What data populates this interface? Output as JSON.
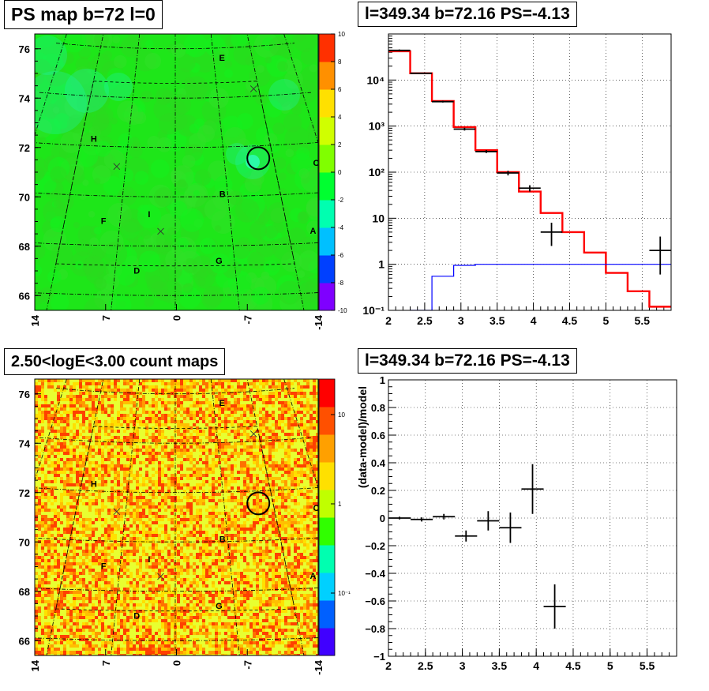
{
  "chart_data": [
    {
      "type": "heatmap",
      "title": "PS map b=72 l=0",
      "ytick_labels": [
        "76",
        "74",
        "72",
        "70",
        "68",
        "66"
      ],
      "y_ticks": [
        76,
        74,
        72,
        70,
        68,
        66
      ],
      "ylim": [
        65.4,
        76.6
      ],
      "xtick_labels": [
        "14",
        "7",
        "0",
        "-7",
        "-14"
      ],
      "xlim": [
        14,
        -14
      ],
      "colorbar": {
        "scale": "linear",
        "range": [
          -10,
          10
        ],
        "tick_labels": [
          "10",
          "8",
          "6",
          "4",
          "2",
          "0",
          "-2",
          "-4",
          "-6",
          "-8",
          "-10"
        ],
        "ticks": [
          10,
          8,
          6,
          4,
          2,
          0,
          -2,
          -4,
          -6,
          -8,
          -10
        ]
      },
      "sources": [
        {
          "label": "E",
          "l": -6.1,
          "b": 75.6
        },
        {
          "label": "H",
          "l": 8.7,
          "b": 72.3
        },
        {
          "label": "C",
          "l": -14.2,
          "b": 71.2
        },
        {
          "label": "B",
          "l": -4.5,
          "b": 70.1
        },
        {
          "label": "I",
          "l": 2.4,
          "b": 69.3
        },
        {
          "label": "F",
          "l": 6.5,
          "b": 69.0
        },
        {
          "label": "A",
          "l": -12.2,
          "b": 68.5
        },
        {
          "label": "G",
          "l": -3.7,
          "b": 67.4
        },
        {
          "label": "D",
          "l": 3.2,
          "b": 67.0
        }
      ],
      "markers": [
        {
          "l": -9.4,
          "b": 74.3
        },
        {
          "l": 5.9,
          "b": 71.2
        },
        {
          "l": 1.3,
          "b": 68.6
        }
      ],
      "circle": {
        "l": -8.5,
        "b": 71.5
      },
      "colors": {
        "background": "#1ee619",
        "colorbar": [
          "#7f00ff",
          "#0040ff",
          "#00c0ff",
          "#00ffb0",
          "#00ff30",
          "#80ff00",
          "#d0ff00",
          "#ffe000",
          "#ff9000",
          "#ff3000"
        ]
      }
    },
    {
      "type": "line",
      "title": "l=349.34 b=72.16 PS=-4.13",
      "xlim": [
        2,
        5.9
      ],
      "ylim": [
        0.1,
        100000
      ],
      "yscale": "log",
      "grid": true,
      "x_ticks": [
        2,
        2.5,
        3,
        3.5,
        4,
        4.5,
        5,
        5.5
      ],
      "xtick_labels": [
        "2",
        "2.5",
        "3",
        "3.5",
        "4",
        "4.5",
        "5",
        "5.5"
      ],
      "ytick_labels": [
        "10⁻¹",
        "1",
        "10",
        "10²",
        "10³",
        "10⁴"
      ],
      "y_ticks": [
        0.1,
        1,
        10,
        100,
        1000,
        10000
      ],
      "bin_edges": [
        2.0,
        2.3,
        2.6,
        2.9,
        3.2,
        3.5,
        3.8,
        4.1,
        4.4,
        4.7,
        5.0,
        5.3,
        5.6,
        5.9
      ],
      "series": [
        {
          "color": "#ff0000",
          "style": "step",
          "values": [
            42000,
            14000,
            3500,
            950,
            300,
            100,
            38,
            13,
            5,
            1.8,
            0.65,
            0.26,
            0.12
          ]
        },
        {
          "color": "#0000ff",
          "style": "step",
          "values": [
            0.01,
            0.1,
            0.55,
            0.95,
            1.0,
            1.0,
            1.0,
            1.0,
            1.0,
            1.0,
            1.0,
            1.0,
            1.0
          ]
        }
      ],
      "data_points": [
        {
          "x": 2.15,
          "xerr": 0.15,
          "y": 44000,
          "ylo": 42000,
          "yhi": 46000
        },
        {
          "x": 2.45,
          "xerr": 0.15,
          "y": 14000,
          "ylo": 13600,
          "yhi": 14400
        },
        {
          "x": 2.75,
          "xerr": 0.15,
          "y": 3400,
          "ylo": 3250,
          "yhi": 3550
        },
        {
          "x": 3.05,
          "xerr": 0.15,
          "y": 860,
          "ylo": 800,
          "yhi": 920
        },
        {
          "x": 3.35,
          "xerr": 0.15,
          "y": 280,
          "ylo": 260,
          "yhi": 300
        },
        {
          "x": 3.65,
          "xerr": 0.15,
          "y": 96,
          "ylo": 85,
          "yhi": 107
        },
        {
          "x": 3.95,
          "xerr": 0.15,
          "y": 45,
          "ylo": 38,
          "yhi": 52
        },
        {
          "x": 4.25,
          "xerr": 0.15,
          "y": 5,
          "ylo": 2.5,
          "yhi": 8
        },
        {
          "x": 5.75,
          "xerr": 0.15,
          "y": 2,
          "ylo": 0.6,
          "yhi": 4
        }
      ]
    },
    {
      "type": "heatmap",
      "title": "2.50<logE<3.00 count maps",
      "ytick_labels": [
        "76",
        "74",
        "72",
        "70",
        "68",
        "66"
      ],
      "y_ticks": [
        76,
        74,
        72,
        70,
        68,
        66
      ],
      "ylim": [
        65.4,
        76.6
      ],
      "xtick_labels": [
        "14",
        "7",
        "0",
        "-7",
        "-14"
      ],
      "xlim": [
        14,
        -14
      ],
      "colorbar": {
        "scale": "log",
        "range": [
          0.02,
          25
        ],
        "tick_labels": [
          "10",
          "1",
          "10⁻¹"
        ],
        "ticks": [
          10,
          1,
          0.1
        ]
      },
      "sources": [
        {
          "label": "E",
          "l": -6.1,
          "b": 75.6
        },
        {
          "label": "H",
          "l": 8.7,
          "b": 72.3
        },
        {
          "label": "C",
          "l": -14.2,
          "b": 71.2
        },
        {
          "label": "B",
          "l": -4.5,
          "b": 70.1
        },
        {
          "label": "I",
          "l": 2.4,
          "b": 69.3
        },
        {
          "label": "F",
          "l": 6.5,
          "b": 69.0
        },
        {
          "label": "A",
          "l": -12.2,
          "b": 68.5
        },
        {
          "label": "G",
          "l": -3.7,
          "b": 67.4
        },
        {
          "label": "D",
          "l": 3.2,
          "b": 67.0
        }
      ],
      "markers": [
        {
          "l": -9.4,
          "b": 74.3
        },
        {
          "l": 5.9,
          "b": 71.2
        },
        {
          "l": 1.3,
          "b": 68.6
        }
      ],
      "circle": {
        "l": -8.5,
        "b": 71.5
      },
      "colors": {
        "palette": [
          "#e8ff30",
          "#ffe000",
          "#ffc000",
          "#ff9a00",
          "#ff7000",
          "#ff4000"
        ]
      }
    },
    {
      "type": "scatter",
      "title": "l=349.34 b=72.16 PS=-4.13",
      "ylabel": "(data-model)/model",
      "xlim": [
        2,
        5.9
      ],
      "ylim": [
        -1,
        1
      ],
      "grid": true,
      "x_ticks": [
        2,
        2.5,
        3,
        3.5,
        4,
        4.5,
        5,
        5.5
      ],
      "xtick_labels": [
        "2",
        "2.5",
        "3",
        "3.5",
        "4",
        "4.5",
        "5",
        "5.5"
      ],
      "y_ticks": [
        -1,
        -0.8,
        -0.6,
        -0.4,
        -0.2,
        0,
        0.2,
        0.4,
        0.6,
        0.8,
        1
      ],
      "ytick_labels": [
        "−1",
        "−0.8",
        "−0.6",
        "−0.4",
        "−0.2",
        "0",
        "0.2",
        "0.4",
        "0.6",
        "0.8",
        "1"
      ],
      "data_points": [
        {
          "x": 2.15,
          "xerr": 0.15,
          "y": 0.0,
          "yerr": 0.01
        },
        {
          "x": 2.45,
          "xerr": 0.15,
          "y": -0.01,
          "yerr": 0.015
        },
        {
          "x": 2.75,
          "xerr": 0.15,
          "y": 0.01,
          "yerr": 0.02
        },
        {
          "x": 3.05,
          "xerr": 0.15,
          "y": -0.13,
          "yerr": 0.04
        },
        {
          "x": 3.35,
          "xerr": 0.15,
          "y": -0.02,
          "yerr": 0.07
        },
        {
          "x": 3.65,
          "xerr": 0.15,
          "y": -0.07,
          "yerr": 0.11
        },
        {
          "x": 3.95,
          "xerr": 0.15,
          "y": 0.21,
          "yerr": 0.18
        },
        {
          "x": 4.25,
          "xerr": 0.15,
          "y": -0.64,
          "yerr": 0.16
        }
      ]
    }
  ]
}
